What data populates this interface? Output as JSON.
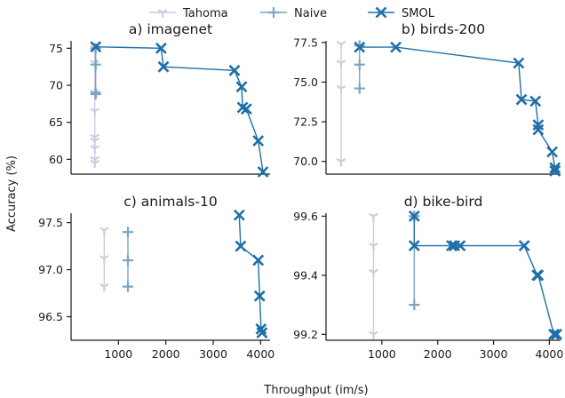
{
  "figure": {
    "ylabel": "Accuracy (%)",
    "xlabel": "Throughput (im/s)"
  },
  "legend": {
    "placement": "top-center",
    "entries": [
      {
        "name": "Tahoma",
        "color": "#cfcbe2",
        "marker": "tri-down"
      },
      {
        "name": "Naive",
        "color": "#7aa6c6",
        "marker": "plus"
      },
      {
        "name": "SMOL",
        "color": "#1f6fa8",
        "marker": "x"
      }
    ]
  },
  "chart_data": [
    {
      "type": "line",
      "title": "a) imagenet",
      "xlim": [
        0,
        4200
      ],
      "ylim": [
        58,
        76
      ],
      "xticks": [],
      "yticks": [
        60,
        65,
        70,
        75
      ],
      "series": [
        {
          "name": "Tahoma",
          "x": [
            500,
            500,
            500,
            500,
            500,
            500,
            500,
            500,
            500
          ],
          "y": [
            75.0,
            73.0,
            69.0,
            66.5,
            63.0,
            62.5,
            61.5,
            60.0,
            59.5
          ]
        },
        {
          "name": "Naive",
          "x": [
            520,
            520,
            520,
            520
          ],
          "y": [
            75.0,
            72.8,
            69.0,
            68.8
          ]
        },
        {
          "name": "SMOL",
          "x": [
            520,
            1900,
            1950,
            3450,
            3600,
            3620,
            3700,
            3950,
            4050
          ],
          "y": [
            75.2,
            75.0,
            72.5,
            72.0,
            69.8,
            67.0,
            66.8,
            62.5,
            58.3
          ]
        }
      ]
    },
    {
      "type": "line",
      "title": "b) birds-200",
      "xlim": [
        0,
        4200
      ],
      "ylim": [
        69.2,
        77.6
      ],
      "xticks": [],
      "yticks": [
        70.0,
        72.5,
        75.0,
        77.5
      ],
      "series": [
        {
          "name": "Tahoma",
          "x": [
            270,
            270,
            270,
            270,
            270
          ],
          "y": [
            77.4,
            76.2,
            74.6,
            70.0,
            70.0
          ]
        },
        {
          "name": "Naive",
          "x": [
            600,
            600,
            600
          ],
          "y": [
            77.3,
            76.1,
            74.6
          ]
        },
        {
          "name": "SMOL",
          "x": [
            600,
            1250,
            3450,
            3500,
            3750,
            3800,
            3800,
            4050,
            4100,
            4100
          ],
          "y": [
            77.2,
            77.2,
            76.2,
            73.9,
            73.8,
            72.3,
            72.0,
            70.6,
            69.6,
            69.4
          ]
        }
      ]
    },
    {
      "type": "line",
      "title": "c) animals-10",
      "xlim": [
        0,
        4200
      ],
      "ylim": [
        96.25,
        97.6
      ],
      "xticks": [
        1000,
        2000,
        3000,
        4000
      ],
      "yticks": [
        96.5,
        97.0,
        97.5
      ],
      "series": [
        {
          "name": "Tahoma",
          "x": [
            700,
            700,
            700
          ],
          "y": [
            97.42,
            97.12,
            96.82
          ]
        },
        {
          "name": "Naive",
          "x": [
            1200,
            1200,
            1200
          ],
          "y": [
            97.4,
            97.1,
            96.82
          ]
        },
        {
          "name": "SMOL",
          "x": [
            3550,
            3580,
            3950,
            3980,
            4010,
            4030
          ],
          "y": [
            97.58,
            97.25,
            97.1,
            96.72,
            96.37,
            96.33
          ]
        }
      ]
    },
    {
      "type": "line",
      "title": "d) bike-bird",
      "xlim": [
        0,
        4200
      ],
      "ylim": [
        99.18,
        99.61
      ],
      "xticks": [
        1000,
        2000,
        3000,
        4000
      ],
      "yticks": [
        99.2,
        99.4,
        99.6
      ],
      "series": [
        {
          "name": "Tahoma",
          "x": [
            850,
            850,
            850,
            850,
            850
          ],
          "y": [
            99.6,
            99.6,
            99.5,
            99.41,
            99.2
          ]
        },
        {
          "name": "Naive",
          "x": [
            1580,
            1580,
            1580
          ],
          "y": [
            99.6,
            99.6,
            99.3
          ]
        },
        {
          "name": "SMOL",
          "x": [
            1580,
            1580,
            2250,
            2300,
            2400,
            3550,
            3780,
            3800,
            4080,
            4130
          ],
          "y": [
            99.6,
            99.5,
            99.5,
            99.5,
            99.5,
            99.5,
            99.4,
            99.4,
            99.2,
            99.2
          ]
        }
      ]
    }
  ]
}
